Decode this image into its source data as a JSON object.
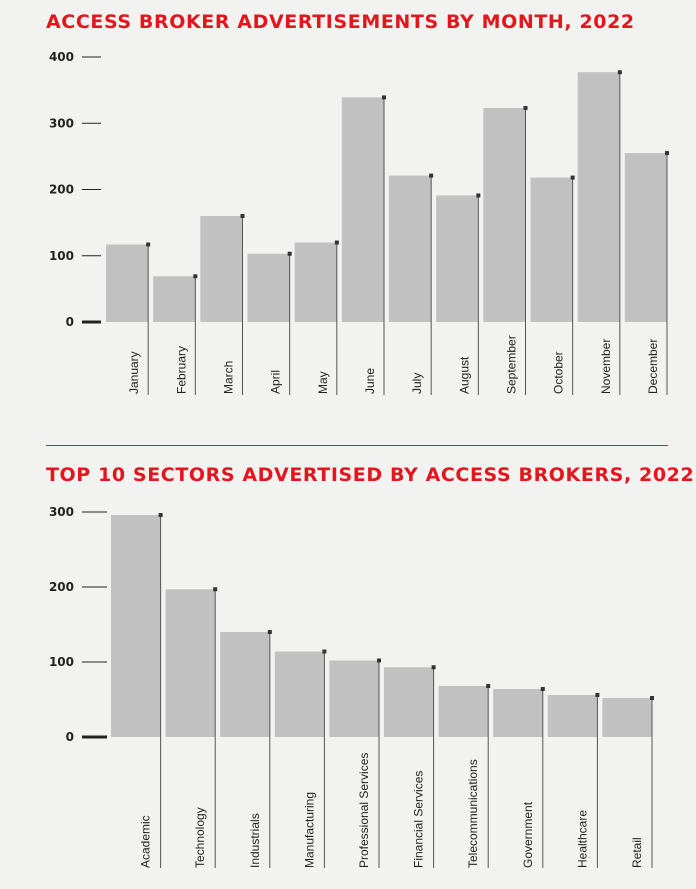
{
  "chart_data": [
    {
      "type": "bar",
      "title": "ACCESS BROKER ADVERTISEMENTS BY MONTH, 2022",
      "xlabel": "",
      "ylabel": "",
      "categories": [
        "January",
        "February",
        "March",
        "April",
        "May",
        "June",
        "July",
        "August",
        "September",
        "October",
        "November",
        "December"
      ],
      "values": [
        117,
        69,
        160,
        103,
        120,
        339,
        221,
        191,
        323,
        218,
        377,
        255
      ],
      "ylim": [
        0,
        400
      ],
      "yticks": [
        "0",
        "100",
        "200",
        "300",
        "400"
      ],
      "grid": false,
      "colors": {
        "bar": "#c1c1c1",
        "leader": "#555555",
        "marker": "#333333",
        "title": "#e3161e"
      }
    },
    {
      "type": "bar",
      "title": "TOP 10 SECTORS ADVERTISED BY ACCESS BROKERS, 2022",
      "xlabel": "",
      "ylabel": "",
      "categories": [
        "Academic",
        "Technology",
        "Industrials",
        "Manufacturing",
        "Professional Services",
        "Financial Services",
        "Telecommunications",
        "Government",
        "Healthcare",
        "Retail"
      ],
      "values": [
        296,
        197,
        140,
        114,
        102,
        93,
        68,
        64,
        56,
        52
      ],
      "ylim": [
        0,
        300
      ],
      "yticks": [
        "0",
        "100",
        "200",
        "300"
      ],
      "grid": false,
      "colors": {
        "bar": "#c1c1c1",
        "leader": "#555555",
        "marker": "#333333",
        "title": "#e3161e"
      }
    }
  ]
}
